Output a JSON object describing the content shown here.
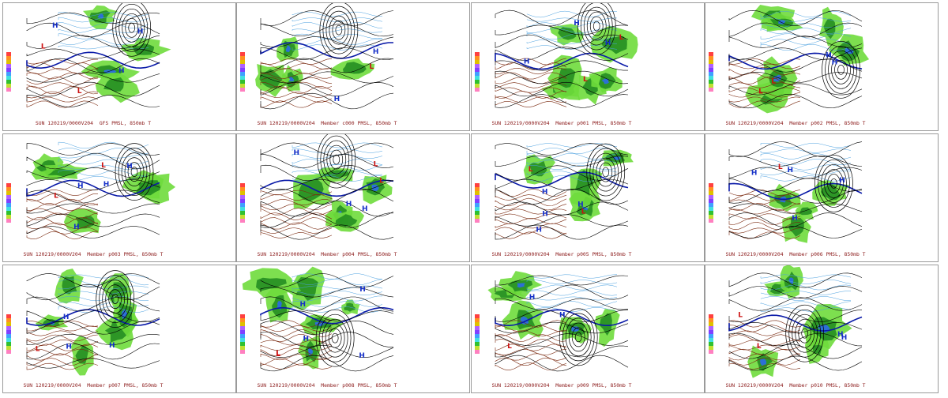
{
  "captions": [
    "SUN 120219/0000V204  GFS PMSL, 850mb T",
    "SUN 120219/0000V204  Member c000 PMSL, 850mb T",
    "SUN 120219/0000V204  Member p001 PMSL, 850mb T",
    "SUN 120219/0000V204  Member p002 PMSL, 850mb T",
    "SUN 120219/0000V204  Member p003 PMSL, 850mb T",
    "SUN 120219/0000V204  Member p004 PMSL, 850mb T",
    "SUN 120219/0000V204  Member p005 PMSL, 850mb T",
    "SUN 120219/0000V204  Member p006 PMSL, 850mb T",
    "SUN 120219/0000V204  Member p007 PMSL, 850mb T",
    "SUN 120219/0000V204  Member p008 PMSL, 850mb T",
    "SUN 120219/0000V204  Member p009 PMSL, 850mb T",
    "SUN 120219/0000V204  Member p010 PMSL, 850mb T"
  ],
  "colors": {
    "precip_light": "#6fdc3c",
    "precip_dark": "#1e8a1e",
    "precip_heavy": "#2c6fd6",
    "isobar": "#000000",
    "freezing_line": "#0a1aa8",
    "cold_isotherm": "#4aa0e0",
    "warm_isotherm": "#7a2a10",
    "high_label": "#1630c8",
    "low_label": "#cc1010",
    "caption": "#8b1a1a",
    "scale": [
      "#ff4040",
      "#ff9020",
      "#e0c000",
      "#b060ff",
      "#8040ff",
      "#40a0ff",
      "#40e0e0",
      "#30c030",
      "#c0e030",
      "#ff80c0"
    ]
  }
}
